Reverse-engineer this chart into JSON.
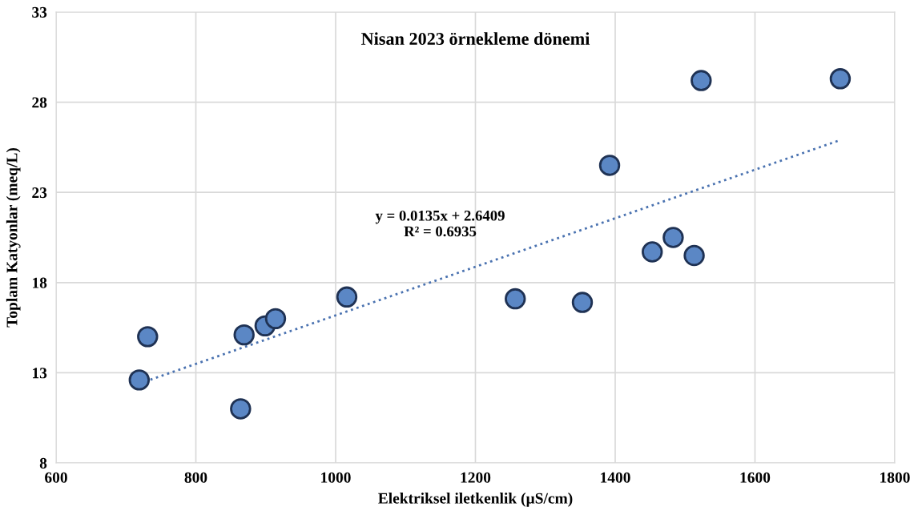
{
  "chart_data": {
    "type": "scatter",
    "title": "Nisan 2023 örnekleme dönemi",
    "xlabel": "Elektriksel iletkenlik (µS/cm)",
    "ylabel": "Toplam Katyonlar (meq/L)",
    "xlim": [
      600,
      1800
    ],
    "xticks": [
      600,
      800,
      1000,
      1200,
      1400,
      1600,
      1800
    ],
    "ylim": [
      8,
      33
    ],
    "yticks": [
      8,
      13,
      18,
      23,
      28,
      33
    ],
    "grid": true,
    "marker": "circle",
    "series": [
      {
        "color": "#5b87c5",
        "x": [
          719,
          731,
          864,
          869,
          899,
          914,
          1016,
          1257,
          1353,
          1392,
          1453,
          1483,
          1513,
          1523,
          1722
        ],
        "values": [
          12.6,
          15.0,
          11.0,
          15.1,
          15.6,
          16.0,
          17.2,
          17.1,
          16.9,
          24.5,
          19.7,
          20.5,
          19.5,
          29.2,
          29.3
        ]
      },
      {
        "type": "line",
        "color": "#4a72b0",
        "line_style": "dotted",
        "marker": "none",
        "x": [
          719,
          1722
        ],
        "values": [
          12.4,
          25.9
        ]
      }
    ],
    "annotations": [
      "y = 0.0135x + 2.6409\nR² = 0.6935"
    ]
  }
}
